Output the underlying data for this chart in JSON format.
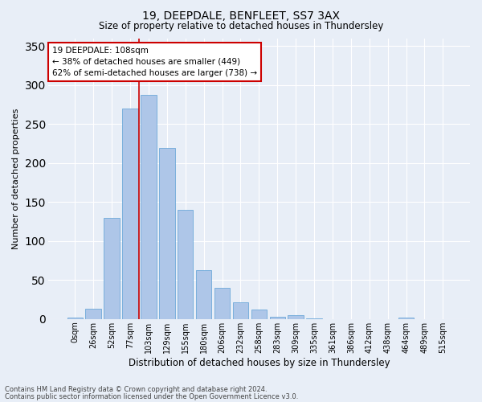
{
  "title1": "19, DEEPDALE, BENFLEET, SS7 3AX",
  "title2": "Size of property relative to detached houses in Thundersley",
  "xlabel": "Distribution of detached houses by size in Thundersley",
  "ylabel": "Number of detached properties",
  "categories": [
    "0sqm",
    "26sqm",
    "52sqm",
    "77sqm",
    "103sqm",
    "129sqm",
    "155sqm",
    "180sqm",
    "206sqm",
    "232sqm",
    "258sqm",
    "283sqm",
    "309sqm",
    "335sqm",
    "361sqm",
    "386sqm",
    "412sqm",
    "438sqm",
    "464sqm",
    "489sqm",
    "515sqm"
  ],
  "values": [
    2,
    13,
    130,
    270,
    287,
    219,
    140,
    63,
    40,
    21,
    12,
    3,
    5,
    1,
    0,
    0,
    0,
    0,
    2,
    0,
    0
  ],
  "bar_color": "#aec6e8",
  "bar_edge_color": "#5a9fd4",
  "annotation_line1": "19 DEEPDALE: 108sqm",
  "annotation_line2": "← 38% of detached houses are smaller (449)",
  "annotation_line3": "62% of semi-detached houses are larger (738) →",
  "annotation_box_edge": "#cc0000",
  "vline_color": "#cc0000",
  "vline_x_index": 4,
  "background_color": "#e8eef7",
  "grid_color": "#ffffff",
  "footer1": "Contains HM Land Registry data © Crown copyright and database right 2024.",
  "footer2": "Contains public sector information licensed under the Open Government Licence v3.0.",
  "ylim": [
    0,
    360
  ],
  "yticks": [
    0,
    50,
    100,
    150,
    200,
    250,
    300,
    350
  ],
  "title1_fontsize": 10,
  "title2_fontsize": 8.5,
  "ylabel_fontsize": 8,
  "xlabel_fontsize": 8.5,
  "tick_fontsize": 7,
  "footer_fontsize": 6,
  "ann_fontsize": 7.5
}
